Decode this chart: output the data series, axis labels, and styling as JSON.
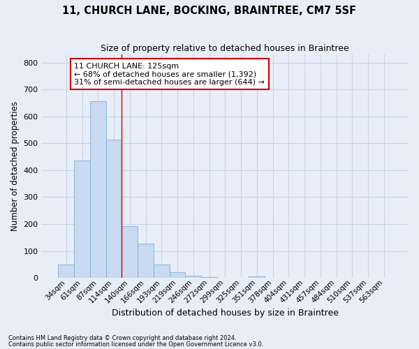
{
  "title": "11, CHURCH LANE, BOCKING, BRAINTREE, CM7 5SF",
  "subtitle": "Size of property relative to detached houses in Braintree",
  "xlabel": "Distribution of detached houses by size in Braintree",
  "ylabel": "Number of detached properties",
  "categories": [
    "34sqm",
    "61sqm",
    "87sqm",
    "114sqm",
    "140sqm",
    "166sqm",
    "193sqm",
    "219sqm",
    "246sqm",
    "272sqm",
    "299sqm",
    "325sqm",
    "351sqm",
    "378sqm",
    "404sqm",
    "431sqm",
    "457sqm",
    "484sqm",
    "510sqm",
    "537sqm",
    "563sqm"
  ],
  "values": [
    50,
    437,
    657,
    515,
    192,
    127,
    50,
    22,
    8,
    2,
    0,
    0,
    5,
    0,
    0,
    0,
    0,
    0,
    0,
    0,
    0
  ],
  "bar_color": "#c8d9f0",
  "bar_edge_color": "#7bafd4",
  "grid_color": "#c8d4e8",
  "background_color": "#e8eef8",
  "annotation_box_facecolor": "#ffffff",
  "annotation_border_color": "#cc0000",
  "red_line_x": 3.5,
  "annotation_line1": "11 CHURCH LANE: 125sqm",
  "annotation_line2": "← 68% of detached houses are smaller (1,392)",
  "annotation_line3": "31% of semi-detached houses are larger (644) →",
  "footer_line1": "Contains HM Land Registry data © Crown copyright and database right 2024.",
  "footer_line2": "Contains public sector information licensed under the Open Government Licence v3.0.",
  "ylim": [
    0,
    830
  ],
  "yticks": [
    0,
    100,
    200,
    300,
    400,
    500,
    600,
    700,
    800
  ],
  "figsize": [
    6.0,
    5.0
  ],
  "dpi": 100
}
